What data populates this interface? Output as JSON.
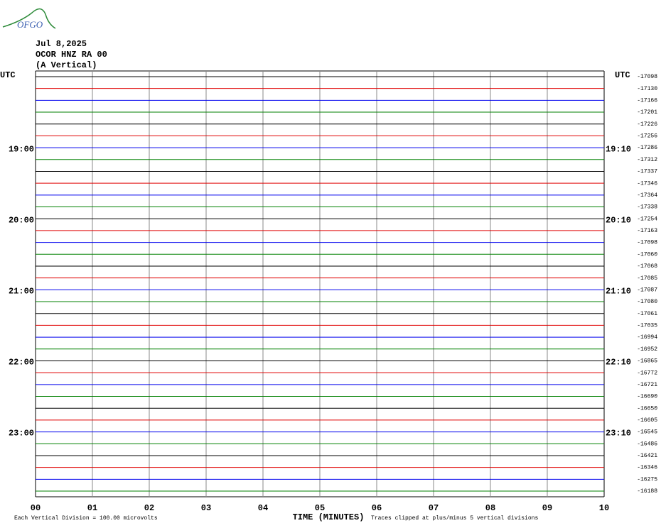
{
  "chart_data": {
    "type": "seismogram",
    "logo": "OFGO",
    "date": "Jul 8,2025",
    "station": "OCOR HNZ RA 00",
    "component": "(A Vertical)",
    "left_axis_label": "UTC",
    "right_axis_label": "UTC",
    "xlabel": "TIME (MINUTES)",
    "scale_note": "Each Vertical Division =  100.00 microvolts",
    "clip_note": "Traces clipped at plus/minus 5 vertical divisions",
    "xlim": [
      0,
      10
    ],
    "xticks": [
      {
        "value": 0,
        "label": "00"
      },
      {
        "value": 1,
        "label": "01"
      },
      {
        "value": 2,
        "label": "02"
      },
      {
        "value": 3,
        "label": "03"
      },
      {
        "value": 4,
        "label": "04"
      },
      {
        "value": 5,
        "label": "05"
      },
      {
        "value": 6,
        "label": "06"
      },
      {
        "value": 7,
        "label": "07"
      },
      {
        "value": 8,
        "label": "08"
      },
      {
        "value": 9,
        "label": "09"
      },
      {
        "value": 10,
        "label": "10"
      }
    ],
    "grid": true,
    "traces": [
      {
        "color": "#000000",
        "offset": -17098
      },
      {
        "color": "#e00000",
        "offset": -17130
      },
      {
        "color": "#0000ee",
        "offset": -17166
      },
      {
        "color": "#008000",
        "offset": -17201
      },
      {
        "color": "#000000",
        "offset": -17226
      },
      {
        "color": "#e00000",
        "offset": -17256
      },
      {
        "color": "#0000ee",
        "offset": -17286,
        "start": "19:00",
        "end": "19:10"
      },
      {
        "color": "#008000",
        "offset": -17312
      },
      {
        "color": "#000000",
        "offset": -17337
      },
      {
        "color": "#e00000",
        "offset": -17346
      },
      {
        "color": "#0000ee",
        "offset": -17364
      },
      {
        "color": "#008000",
        "offset": -17338
      },
      {
        "color": "#000000",
        "offset": -17254,
        "start": "20:00",
        "end": "20:10"
      },
      {
        "color": "#e00000",
        "offset": -17163
      },
      {
        "color": "#0000ee",
        "offset": -17098
      },
      {
        "color": "#008000",
        "offset": -17060
      },
      {
        "color": "#000000",
        "offset": -17068
      },
      {
        "color": "#e00000",
        "offset": -17085
      },
      {
        "color": "#0000ee",
        "offset": -17087,
        "start": "21:00",
        "end": "21:10"
      },
      {
        "color": "#008000",
        "offset": -17080
      },
      {
        "color": "#000000",
        "offset": -17061
      },
      {
        "color": "#e00000",
        "offset": -17035
      },
      {
        "color": "#0000ee",
        "offset": -16994
      },
      {
        "color": "#008000",
        "offset": -16952
      },
      {
        "color": "#000000",
        "offset": -16865,
        "start": "22:00",
        "end": "22:10"
      },
      {
        "color": "#e00000",
        "offset": -16772
      },
      {
        "color": "#0000ee",
        "offset": -16721
      },
      {
        "color": "#008000",
        "offset": -16690
      },
      {
        "color": "#000000",
        "offset": -16650
      },
      {
        "color": "#e00000",
        "offset": -16605
      },
      {
        "color": "#0000ee",
        "offset": -16545,
        "start": "23:00",
        "end": "23:10"
      },
      {
        "color": "#008000",
        "offset": -16486
      },
      {
        "color": "#000000",
        "offset": -16421
      },
      {
        "color": "#e00000",
        "offset": -16346
      },
      {
        "color": "#0000ee",
        "offset": -16275
      },
      {
        "color": "#008000",
        "offset": -16188
      }
    ]
  }
}
